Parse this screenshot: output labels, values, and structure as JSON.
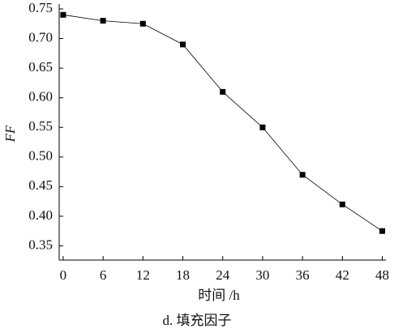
{
  "chart_data": {
    "type": "line",
    "x_label": "时间 /h",
    "y_label": "FF",
    "caption": "d. 填充因子",
    "x": [
      0,
      6,
      12,
      18,
      24,
      30,
      36,
      42,
      48
    ],
    "series": [
      {
        "color": "#000000",
        "values": [
          0.74,
          0.73,
          0.725,
          0.69,
          0.61,
          0.55,
          0.47,
          0.42,
          0.375
        ]
      }
    ],
    "xlim": [
      -0.6,
      48.3
    ],
    "xticks": [
      0,
      6,
      12,
      18,
      24,
      30,
      36,
      42,
      48
    ],
    "ylim": [
      0.326,
      0.75
    ],
    "yticks": [
      {
        "value": 0.35,
        "label": "0.35"
      },
      {
        "value": 0.4,
        "label": "0.40"
      },
      {
        "value": 0.45,
        "label": "0.45"
      },
      {
        "value": 0.5,
        "label": "0.50"
      },
      {
        "value": 0.55,
        "label": "0.55"
      },
      {
        "value": 0.6,
        "label": "0.60"
      },
      {
        "value": 0.65,
        "label": "0.65"
      },
      {
        "value": 0.7,
        "label": "0.70"
      },
      {
        "value": 0.75,
        "label": "0.75"
      }
    ],
    "grid": false
  }
}
